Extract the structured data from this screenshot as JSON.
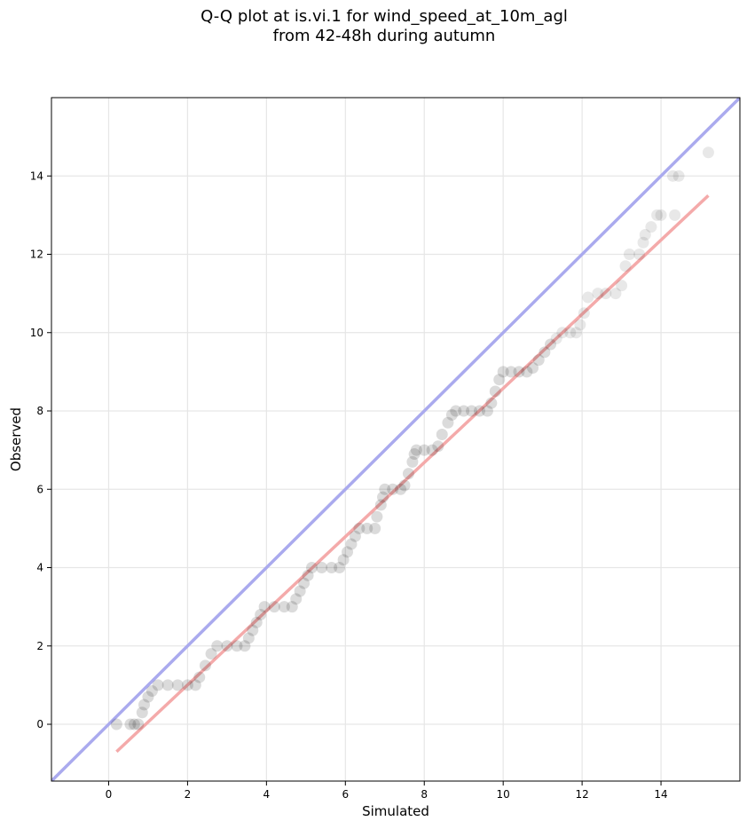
{
  "chart_data": {
    "type": "scatter",
    "title_lines": [
      "Q-Q plot at is.vi.1 for wind_speed_at_10m_agl",
      "from 42-48h during autumn"
    ],
    "xlabel": "Simulated",
    "ylabel": "Observed",
    "xlim": [
      -1.45,
      16.0
    ],
    "ylim": [
      -1.45,
      16.0
    ],
    "xticks": [
      0,
      2,
      4,
      6,
      8,
      10,
      12,
      14
    ],
    "yticks": [
      0,
      2,
      4,
      6,
      8,
      10,
      12,
      14
    ],
    "grid": true,
    "colors": {
      "identity_line": "#aaaaee",
      "fit_line": "#f4aaaa",
      "points": "#000000"
    },
    "identity_line": {
      "x": [
        -1.45,
        16.0
      ],
      "y": [
        -1.45,
        16.0
      ]
    },
    "fit_line": {
      "x": [
        0.2,
        15.2
      ],
      "y": [
        -0.7,
        13.5
      ]
    },
    "points": [
      [
        0.2,
        0
      ],
      [
        0.55,
        0
      ],
      [
        0.65,
        0
      ],
      [
        0.75,
        0
      ],
      [
        0.85,
        0.3
      ],
      [
        0.9,
        0.5
      ],
      [
        1.0,
        0.7
      ],
      [
        1.1,
        0.85
      ],
      [
        1.25,
        1
      ],
      [
        1.5,
        1
      ],
      [
        1.75,
        1
      ],
      [
        2.0,
        1
      ],
      [
        2.2,
        1
      ],
      [
        2.3,
        1.2
      ],
      [
        2.45,
        1.5
      ],
      [
        2.6,
        1.8
      ],
      [
        2.75,
        2
      ],
      [
        3.0,
        2
      ],
      [
        3.25,
        2
      ],
      [
        3.45,
        2
      ],
      [
        3.55,
        2.2
      ],
      [
        3.65,
        2.4
      ],
      [
        3.75,
        2.6
      ],
      [
        3.85,
        2.8
      ],
      [
        3.95,
        3
      ],
      [
        4.2,
        3
      ],
      [
        4.45,
        3
      ],
      [
        4.65,
        3
      ],
      [
        4.75,
        3.2
      ],
      [
        4.85,
        3.4
      ],
      [
        4.95,
        3.6
      ],
      [
        5.05,
        3.8
      ],
      [
        5.15,
        4
      ],
      [
        5.4,
        4
      ],
      [
        5.65,
        4
      ],
      [
        5.85,
        4
      ],
      [
        5.95,
        4.2
      ],
      [
        6.05,
        4.4
      ],
      [
        6.15,
        4.6
      ],
      [
        6.25,
        4.8
      ],
      [
        6.35,
        5
      ],
      [
        6.55,
        5
      ],
      [
        6.75,
        5
      ],
      [
        6.8,
        5.3
      ],
      [
        6.9,
        5.6
      ],
      [
        6.95,
        5.8
      ],
      [
        7.0,
        6
      ],
      [
        7.2,
        6
      ],
      [
        7.4,
        6
      ],
      [
        7.5,
        6.1
      ],
      [
        7.6,
        6.4
      ],
      [
        7.7,
        6.7
      ],
      [
        7.75,
        6.9
      ],
      [
        7.8,
        7
      ],
      [
        8.0,
        7
      ],
      [
        8.2,
        7
      ],
      [
        8.35,
        7.1
      ],
      [
        8.45,
        7.4
      ],
      [
        8.6,
        7.7
      ],
      [
        8.7,
        7.9
      ],
      [
        8.8,
        8
      ],
      [
        9.0,
        8
      ],
      [
        9.2,
        8
      ],
      [
        9.4,
        8
      ],
      [
        9.6,
        8
      ],
      [
        9.7,
        8.2
      ],
      [
        9.8,
        8.5
      ],
      [
        9.9,
        8.8
      ],
      [
        10.0,
        9
      ],
      [
        10.2,
        9
      ],
      [
        10.4,
        9
      ],
      [
        10.6,
        9
      ],
      [
        10.75,
        9.1
      ],
      [
        10.9,
        9.3
      ],
      [
        11.05,
        9.5
      ],
      [
        11.2,
        9.7
      ],
      [
        11.35,
        9.85
      ],
      [
        11.5,
        10
      ],
      [
        11.7,
        10
      ],
      [
        11.85,
        10
      ],
      [
        11.95,
        10.2
      ],
      [
        12.05,
        10.5
      ],
      [
        12.15,
        10.9
      ],
      [
        12.4,
        11
      ],
      [
        12.6,
        11
      ],
      [
        12.85,
        11
      ],
      [
        13.0,
        11.2
      ],
      [
        13.1,
        11.7
      ],
      [
        13.2,
        12
      ],
      [
        13.45,
        12
      ],
      [
        13.55,
        12.3
      ],
      [
        13.6,
        12.5
      ],
      [
        13.75,
        12.7
      ],
      [
        13.9,
        13
      ],
      [
        14.0,
        13
      ],
      [
        14.35,
        13
      ],
      [
        14.3,
        14
      ],
      [
        14.45,
        14
      ],
      [
        15.2,
        14.6
      ]
    ]
  }
}
